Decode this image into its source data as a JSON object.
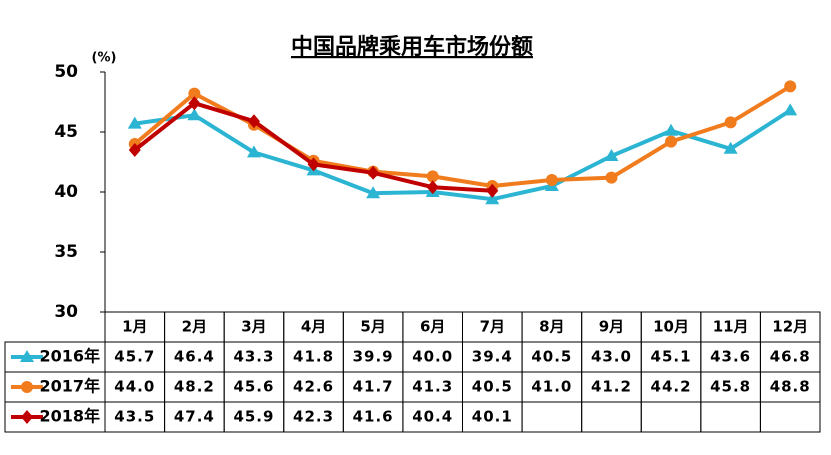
{
  "chart_data": {
    "type": "line",
    "title": "中国品牌乘用车市场份额",
    "y_unit": "(%)",
    "categories": [
      "1月",
      "2月",
      "3月",
      "4月",
      "5月",
      "6月",
      "7月",
      "8月",
      "9月",
      "10月",
      "11月",
      "12月"
    ],
    "ylim": [
      30,
      50
    ],
    "yticks": [
      30,
      35,
      40,
      45,
      50
    ],
    "series": [
      {
        "name": "2016年",
        "color": "#2bb5d3",
        "marker": "triangle",
        "values": [
          45.7,
          46.4,
          43.3,
          41.8,
          39.9,
          40.0,
          39.4,
          40.5,
          43.0,
          45.1,
          43.6,
          46.8
        ],
        "value_labels": [
          "45.7",
          "46.4",
          "43.3",
          "41.8",
          "39.9",
          "40.0",
          "39.4",
          "40.5",
          "43.0",
          "45.1",
          "43.6",
          "46.8"
        ]
      },
      {
        "name": "2017年",
        "color": "#f07c1e",
        "marker": "circle",
        "values": [
          44.0,
          48.2,
          45.6,
          42.6,
          41.7,
          41.3,
          40.5,
          41.0,
          41.2,
          44.2,
          45.8,
          48.8
        ],
        "value_labels": [
          "44.0",
          "48.2",
          "45.6",
          "42.6",
          "41.7",
          "41.3",
          "40.5",
          "41.0",
          "41.2",
          "44.2",
          "45.8",
          "48.8"
        ]
      },
      {
        "name": "2018年",
        "color": "#c00000",
        "marker": "diamond",
        "values": [
          43.5,
          47.4,
          45.9,
          42.3,
          41.6,
          40.4,
          40.1,
          null,
          null,
          null,
          null,
          null
        ],
        "value_labels": [
          "43.5",
          "47.4",
          "45.9",
          "42.3",
          "41.6",
          "40.4",
          "40.1",
          null,
          null,
          null,
          null,
          null
        ]
      }
    ]
  }
}
